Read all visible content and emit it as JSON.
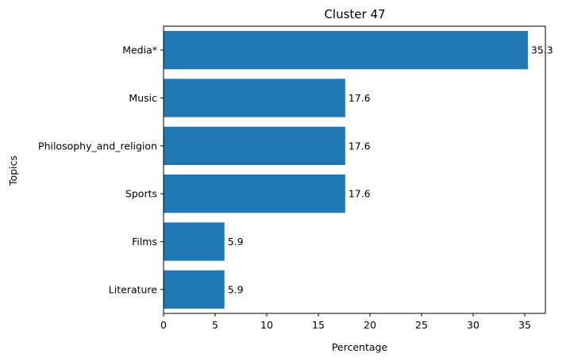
{
  "chart_data": {
    "type": "bar",
    "orientation": "horizontal",
    "title": "Cluster 47",
    "xlabel": "Percentage",
    "ylabel": "Topics",
    "categories": [
      "Media*",
      "Music",
      "Philosophy_and_religion",
      "Sports",
      "Films",
      "Literature"
    ],
    "values": [
      35.3,
      17.6,
      17.6,
      17.6,
      5.9,
      5.9
    ],
    "data_labels": [
      "35.3",
      "17.6",
      "17.6",
      "17.6",
      "5.9",
      "5.9"
    ],
    "xlim": [
      0,
      37
    ],
    "xticks": [
      0,
      5,
      10,
      15,
      20,
      25,
      30,
      35
    ],
    "xtick_labels": [
      "0",
      "5",
      "10",
      "15",
      "20",
      "25",
      "30",
      "35"
    ],
    "bar_color": "#1f77b4",
    "grid": false,
    "legend": false
  }
}
